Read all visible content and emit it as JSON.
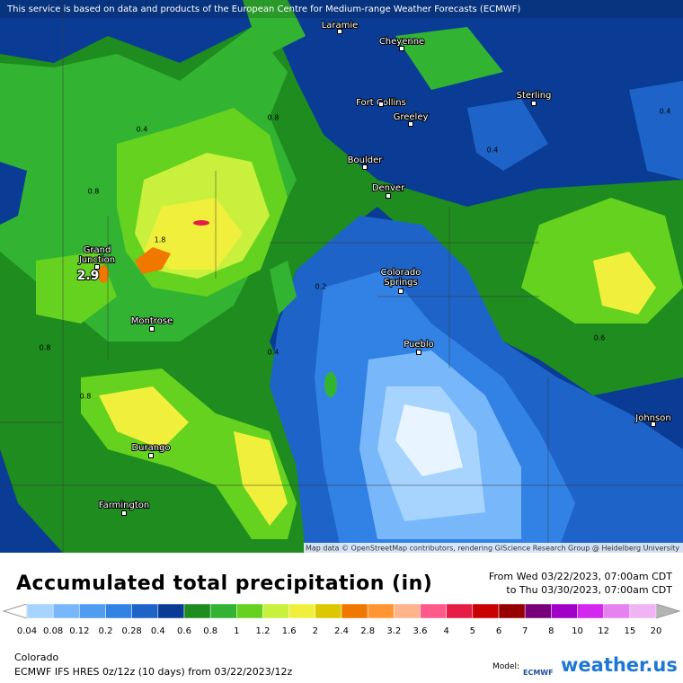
{
  "header": {
    "disclaimer": "This service is based on data and products of the European Centre for Medium-range Weather Forecasts (ECMWF)"
  },
  "map": {
    "attribution": "Map data © OpenStreetMap contributors, rendering GIScience Research Group @ Heidelberg University",
    "cities": [
      [
        "Laramie"
      ],
      [
        "Cheyenne"
      ],
      [
        "Fort Collins"
      ],
      [
        "Greeley"
      ],
      [
        "Sterling"
      ],
      [
        "Boulder"
      ],
      [
        "Denver"
      ],
      [
        "Grand",
        "Junction"
      ],
      [
        "Colorado",
        "Springs"
      ],
      [
        "Montrose"
      ],
      [
        "Pueblo"
      ],
      [
        "Johnson"
      ],
      [
        "Durango"
      ],
      [
        "Farmington"
      ]
    ],
    "highlight_value": "2.9",
    "contour_labels": [
      "0.8",
      "0.4",
      "0.8",
      "1.8",
      "0.2",
      "0.4",
      "0.8",
      "0.8",
      "0.4",
      "0.4",
      "0.6"
    ]
  },
  "footer": {
    "title": "Accumulated total precipitation (in)",
    "period_from": "From Wed 03/22/2023, 07:00am CDT",
    "period_to": "to Thu 03/30/2023, 07:00am CDT",
    "legend": {
      "labels": [
        "0.04",
        "0.08",
        "0.12",
        "0.2",
        "0.28",
        "0.4",
        "0.6",
        "0.8",
        "1",
        "1.2",
        "1.6",
        "2",
        "2.4",
        "2.8",
        "3.2",
        "3.6",
        "4",
        "5",
        "6",
        "7",
        "8",
        "10",
        "12",
        "15",
        "20"
      ],
      "colors": [
        "#a6d4ff",
        "#78b8fa",
        "#4f9cf0",
        "#3282e6",
        "#1e64c8",
        "#0a3c96",
        "#1e8c1e",
        "#32b432",
        "#64d21e",
        "#c8f03c",
        "#f0f03c",
        "#dcc800",
        "#f07800",
        "#ff9632",
        "#ffb48c",
        "#ff5a8c",
        "#e61e46",
        "#c80000",
        "#960000",
        "#780078",
        "#a000c8",
        "#d228f0",
        "#e682f0",
        "#f0b4f5",
        "#f5e6f5"
      ],
      "under_color": "#ffffff",
      "over_color": "#b4b4b4"
    },
    "region": "Colorado",
    "model_line": "ECMWF IFS HRES 0z/12z (10 days) from  03/22/2023/12z",
    "model_label": "Model:",
    "model_logo": "ECMWF",
    "brand": "weather.us"
  }
}
